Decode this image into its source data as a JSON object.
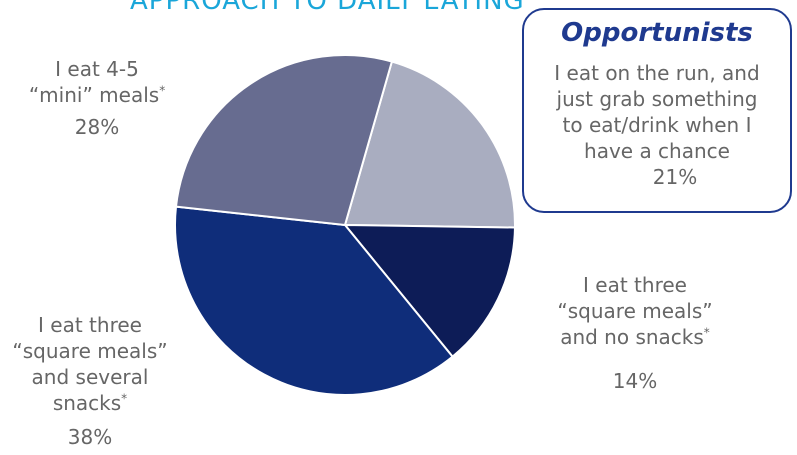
{
  "title": "APPROACH TO DAILY EATING",
  "chart_data": {
    "type": "pie",
    "slices": [
      {
        "label": "I eat on the run, and just grab something to eat/drink when I have a chance",
        "value": 21,
        "color": "#a9adc0"
      },
      {
        "label": "I eat three “square meals” and no snacks*",
        "value": 14,
        "color": "#0d1c57"
      },
      {
        "label": "I eat three “square meals” and several snacks*",
        "value": 38,
        "color": "#0f2d7a"
      },
      {
        "label": "I eat 4-5 “mini” meals*",
        "value": 28,
        "color": "#676c90"
      }
    ]
  },
  "labels": {
    "mini": {
      "lines": [
        "I eat 4-5",
        "“mini” meals"
      ],
      "pct": "28%"
    },
    "square_snacks": {
      "lines": [
        "I eat three",
        "“square meals”",
        "and several",
        "snacks"
      ],
      "pct": "38%"
    },
    "square_nosnacks": {
      "lines": [
        "I eat three",
        "“square meals”",
        "and no snacks"
      ],
      "pct": "14%"
    }
  },
  "callout": {
    "title": "Opportunists",
    "lines": [
      "I eat on the run, and",
      "just grab something",
      "to eat/drink when I",
      "have a chance"
    ],
    "pct": "21%"
  },
  "asterisk": "*"
}
